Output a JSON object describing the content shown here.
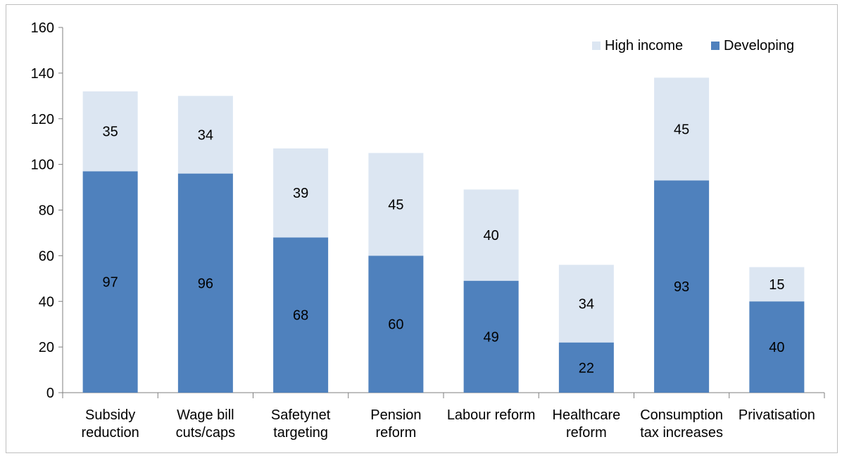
{
  "chart_data": {
    "type": "bar",
    "stacked": true,
    "categories": [
      [
        "Subsidy",
        "reduction"
      ],
      [
        "Wage bill",
        "cuts/caps"
      ],
      [
        "Safetynet",
        "targeting"
      ],
      [
        "Pension",
        "reform"
      ],
      [
        "Labour reform"
      ],
      [
        "Healthcare",
        "reform"
      ],
      [
        "Consumption",
        "tax increases"
      ],
      [
        "Privatisation"
      ]
    ],
    "series": [
      {
        "name": "Developing",
        "color": "#4f81bd",
        "values": [
          97,
          96,
          68,
          60,
          49,
          22,
          93,
          40
        ]
      },
      {
        "name": "High income",
        "color": "#dce6f2",
        "values": [
          35,
          34,
          39,
          45,
          40,
          34,
          45,
          15
        ]
      }
    ],
    "legend_order": [
      "High income",
      "Developing"
    ],
    "legend_position": "top-right",
    "ylim": [
      0,
      160
    ],
    "yticks": [
      0,
      20,
      40,
      60,
      80,
      100,
      120,
      140,
      160
    ],
    "grid": false,
    "title": "",
    "xlabel": "",
    "ylabel": ""
  }
}
